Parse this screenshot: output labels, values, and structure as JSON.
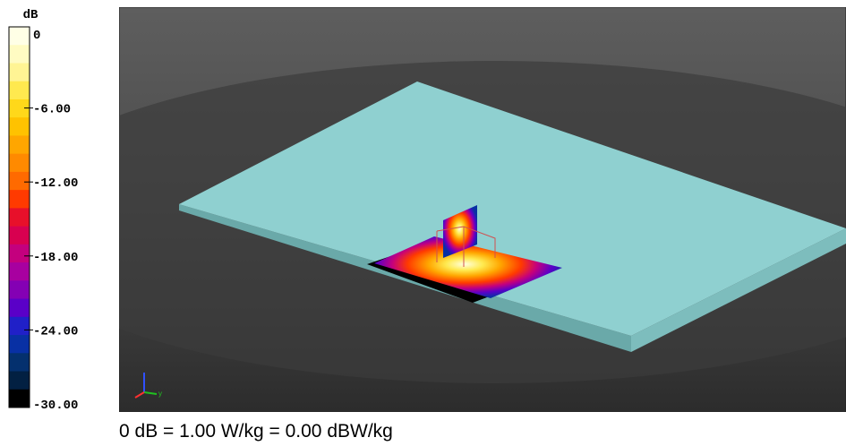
{
  "colorbar": {
    "unit": "dB",
    "labels": [
      "0",
      "-6.00",
      "-12.00",
      "-18.00",
      "-24.00",
      "-30.00"
    ],
    "colors": [
      "#ffffe6",
      "#fffbc2",
      "#fff494",
      "#ffe94f",
      "#ffd81a",
      "#ffc200",
      "#ffa600",
      "#ff8a00",
      "#ff6a00",
      "#ff3a00",
      "#e8102a",
      "#d80050",
      "#c4007e",
      "#a800a0",
      "#8400b4",
      "#5a00c8",
      "#2020c8",
      "#0830a4",
      "#04306e",
      "#022042",
      "#000000"
    ]
  },
  "viewport": {
    "axis_label": "y"
  },
  "caption": "0 dB = 1.00 W/kg = 0.00 dBW/kg"
}
